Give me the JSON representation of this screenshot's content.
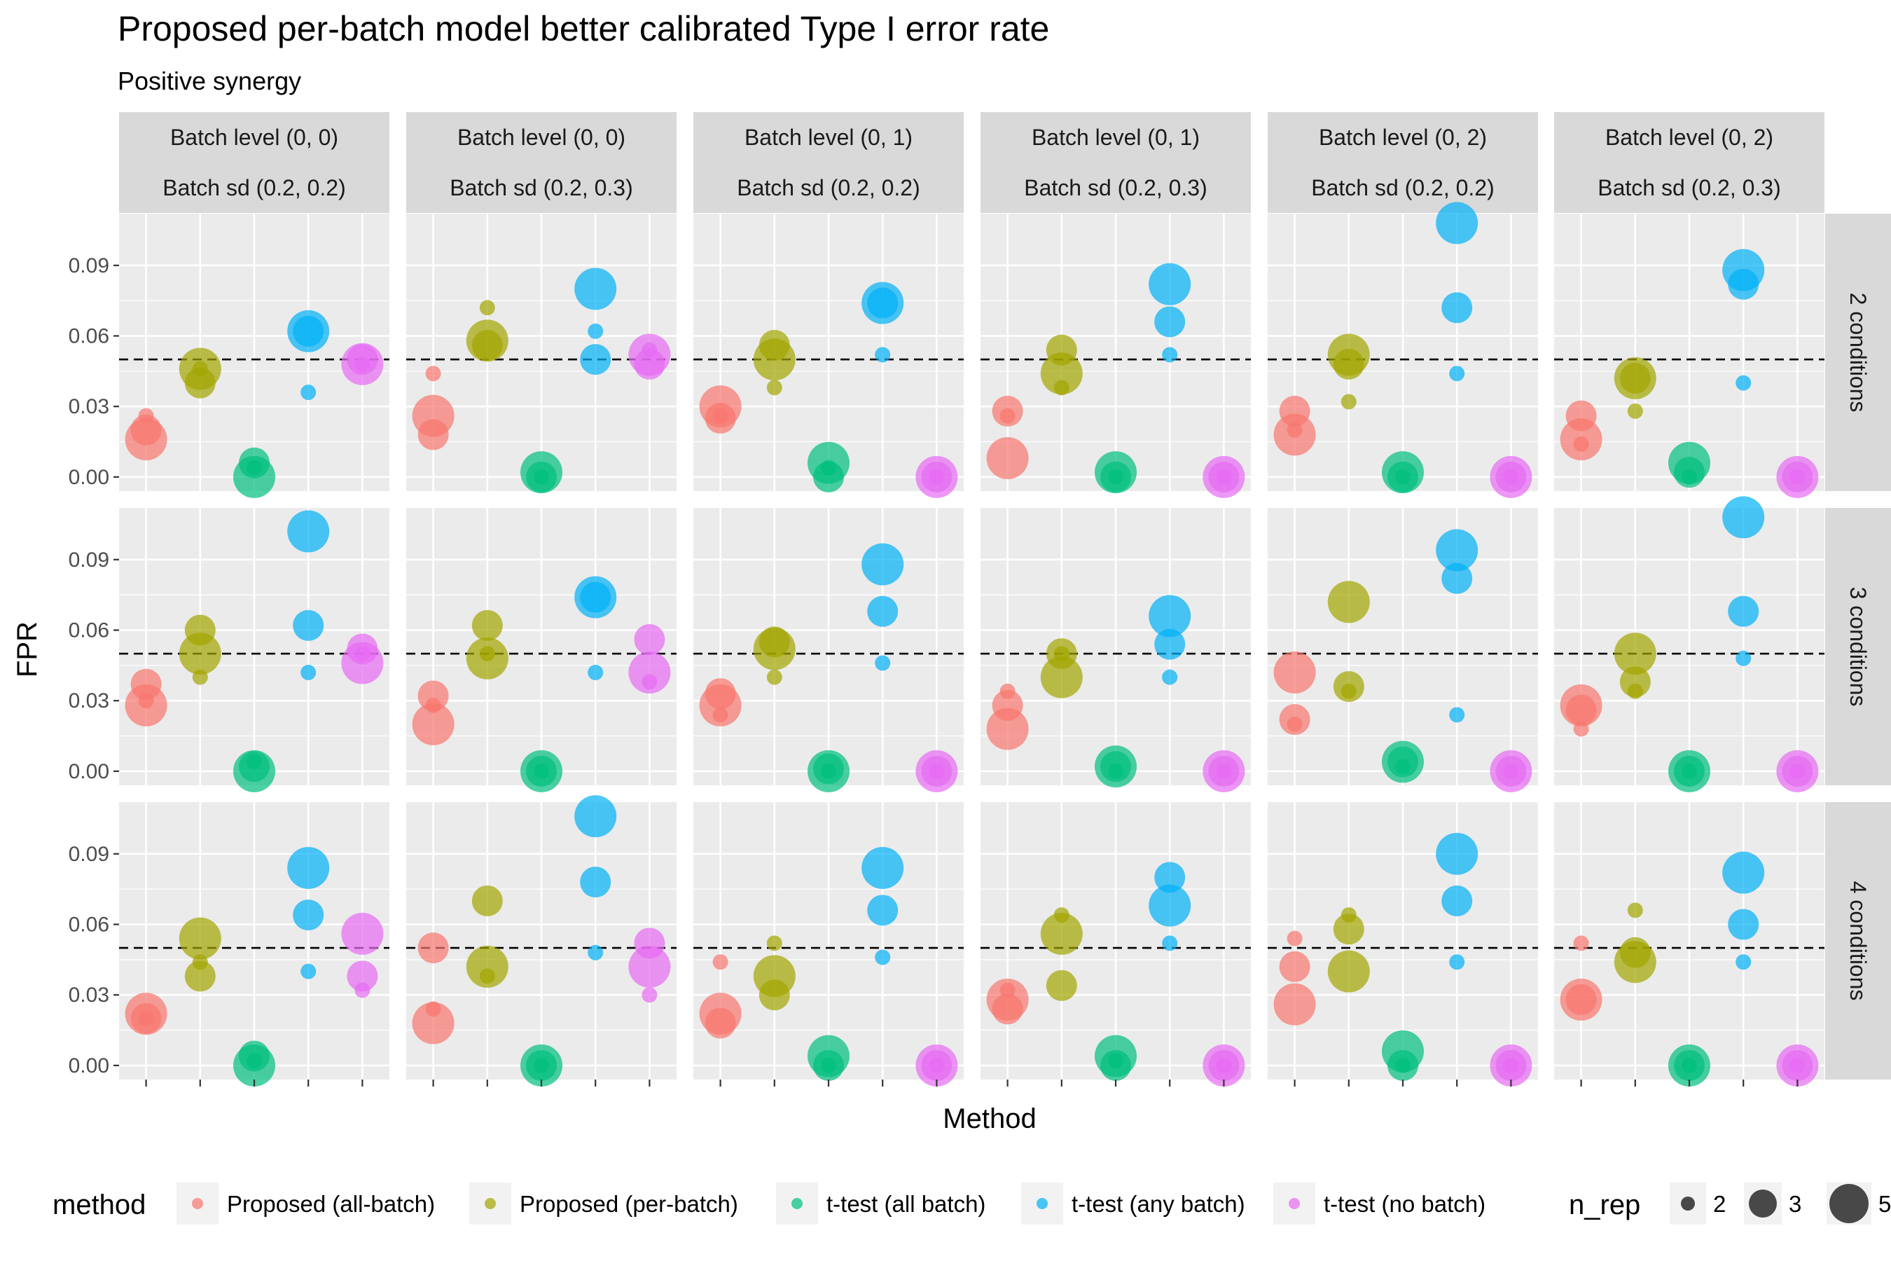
{
  "chart_data": {
    "type": "scatter",
    "title": "Proposed per-batch model better calibrated Type I error rate",
    "subtitle": "Positive synergy",
    "xlabel": "Method",
    "ylabel": "FPR",
    "ylim": [
      -0.006,
      0.112
    ],
    "y_ticks": [
      0.0,
      0.03,
      0.06,
      0.09
    ],
    "y_tick_labels": [
      "0.00",
      "0.03",
      "0.06",
      "0.09"
    ],
    "reference_line": 0.05,
    "grid": true,
    "legend_position": "bottom",
    "methods": [
      "Proposed (all-batch)",
      "Proposed (per-batch)",
      "t-test (all batch)",
      "t-test (any batch)",
      "t-test (no batch)"
    ],
    "method_colors": [
      "#F8766D",
      "#A3A500",
      "#00BF7D",
      "#00B0F6",
      "#E76BF3"
    ],
    "col_strips": [
      [
        "Batch level (0, 0)",
        "Batch sd (0.2, 0.2)"
      ],
      [
        "Batch level (0, 0)",
        "Batch sd (0.2, 0.3)"
      ],
      [
        "Batch level (0, 1)",
        "Batch sd (0.2, 0.2)"
      ],
      [
        "Batch level (0, 1)",
        "Batch sd (0.2, 0.3)"
      ],
      [
        "Batch level (0, 2)",
        "Batch sd (0.2, 0.2)"
      ],
      [
        "Batch level (0, 2)",
        "Batch sd (0.2, 0.3)"
      ]
    ],
    "row_strips": [
      "2 conditions",
      "3 conditions",
      "4 conditions"
    ],
    "size_legend": {
      "title": "n_rep",
      "values": [
        2,
        3,
        5
      ],
      "labels": [
        "2",
        "3",
        "5"
      ]
    },
    "color_legend_title": "method",
    "panels": [
      [
        {
          "points": [
            [
              0.026,
              0.02,
              0.016
            ],
            [
              0.046,
              0.04,
              0.046
            ],
            [
              0.004,
              0.006,
              0.0
            ],
            [
              0.036,
              0.062,
              0.062
            ],
            [
              0.048,
              0.05,
              0.048
            ]
          ]
        },
        {
          "points": [
            [
              0.044,
              0.018,
              0.026
            ],
            [
              0.072,
              0.056,
              0.058
            ],
            [
              0.0,
              0.0,
              0.002
            ],
            [
              0.062,
              0.05,
              0.08
            ],
            [
              0.054,
              0.048,
              0.052
            ]
          ]
        },
        {
          "points": [
            [
              0.026,
              0.025,
              0.03
            ],
            [
              0.038,
              0.056,
              0.05
            ],
            [
              0.004,
              0.0,
              0.006
            ],
            [
              0.052,
              0.074,
              0.074
            ],
            [
              0.0,
              0.0,
              0.0
            ]
          ]
        },
        {
          "points": [
            [
              0.026,
              0.028,
              0.008
            ],
            [
              0.038,
              0.054,
              0.044
            ],
            [
              0.0,
              0.0,
              0.002
            ],
            [
              0.052,
              0.066,
              0.082
            ],
            [
              0.0,
              0.0,
              0.0
            ]
          ]
        },
        {
          "points": [
            [
              0.02,
              0.028,
              0.018
            ],
            [
              0.032,
              0.048,
              0.052
            ],
            [
              0.0,
              0.0,
              0.002
            ],
            [
              0.044,
              0.072,
              0.108
            ],
            [
              0.0,
              0.0,
              0.0
            ]
          ]
        },
        {
          "points": [
            [
              0.014,
              0.026,
              0.016
            ],
            [
              0.028,
              0.042,
              0.042
            ],
            [
              0.0,
              0.002,
              0.006
            ],
            [
              0.04,
              0.082,
              0.088
            ],
            [
              0.0,
              0.0,
              0.0
            ]
          ]
        }
      ],
      [
        {
          "points": [
            [
              0.03,
              0.037,
              0.028
            ],
            [
              0.04,
              0.06,
              0.05
            ],
            [
              0.004,
              0.002,
              0.0
            ],
            [
              0.042,
              0.062,
              0.102
            ],
            [
              0.05,
              0.052,
              0.046
            ]
          ]
        },
        {
          "points": [
            [
              0.028,
              0.032,
              0.02
            ],
            [
              0.05,
              0.062,
              0.048
            ],
            [
              0.0,
              0.0,
              0.0
            ],
            [
              0.042,
              0.074,
              0.074
            ],
            [
              0.038,
              0.056,
              0.042
            ]
          ]
        },
        {
          "points": [
            [
              0.024,
              0.033,
              0.028
            ],
            [
              0.04,
              0.055,
              0.052
            ],
            [
              0.0,
              0.001,
              0.0
            ],
            [
              0.046,
              0.068,
              0.088
            ],
            [
              0.0,
              0.0,
              0.0
            ]
          ]
        },
        {
          "points": [
            [
              0.034,
              0.028,
              0.018
            ],
            [
              0.05,
              0.05,
              0.04
            ],
            [
              0.0,
              0.002,
              0.002
            ],
            [
              0.04,
              0.054,
              0.066
            ],
            [
              0.0,
              0.0,
              0.0
            ]
          ]
        },
        {
          "points": [
            [
              0.02,
              0.022,
              0.042
            ],
            [
              0.034,
              0.036,
              0.072
            ],
            [
              0.002,
              0.004,
              0.004
            ],
            [
              0.024,
              0.082,
              0.094
            ],
            [
              0.0,
              0.0,
              0.0
            ]
          ]
        },
        {
          "points": [
            [
              0.018,
              0.026,
              0.028
            ],
            [
              0.034,
              0.038,
              0.05
            ],
            [
              0.0,
              0.0,
              0.0
            ],
            [
              0.048,
              0.068,
              0.108
            ],
            [
              0.0,
              0.0,
              0.0
            ]
          ]
        }
      ],
      [
        {
          "points": [
            [
              0.02,
              0.02,
              0.022
            ],
            [
              0.044,
              0.038,
              0.054
            ],
            [
              0.002,
              0.004,
              0.0
            ],
            [
              0.04,
              0.064,
              0.084
            ],
            [
              0.032,
              0.038,
              0.056
            ]
          ]
        },
        {
          "points": [
            [
              0.024,
              0.05,
              0.018
            ],
            [
              0.038,
              0.07,
              0.042
            ],
            [
              0.0,
              0.0,
              0.0
            ],
            [
              0.048,
              0.078,
              0.106
            ],
            [
              0.03,
              0.052,
              0.042
            ]
          ]
        },
        {
          "points": [
            [
              0.044,
              0.018,
              0.022
            ],
            [
              0.052,
              0.03,
              0.038
            ],
            [
              0.0,
              0.0,
              0.004
            ],
            [
              0.046,
              0.066,
              0.084
            ],
            [
              0.0,
              0.0,
              0.0
            ]
          ]
        },
        {
          "points": [
            [
              0.032,
              0.024,
              0.028
            ],
            [
              0.064,
              0.034,
              0.056
            ],
            [
              0.002,
              0.0,
              0.004
            ],
            [
              0.052,
              0.08,
              0.068
            ],
            [
              0.0,
              0.0,
              0.0
            ]
          ]
        },
        {
          "points": [
            [
              0.054,
              0.042,
              0.026
            ],
            [
              0.064,
              0.058,
              0.04
            ],
            [
              0.0,
              0.0,
              0.006
            ],
            [
              0.044,
              0.07,
              0.09
            ],
            [
              0.0,
              0.0,
              0.0
            ]
          ]
        },
        {
          "points": [
            [
              0.052,
              0.028,
              0.028
            ],
            [
              0.066,
              0.048,
              0.044
            ],
            [
              0.0,
              0.0,
              0.0
            ],
            [
              0.044,
              0.06,
              0.082
            ],
            [
              0.0,
              0.0,
              0.0
            ]
          ]
        }
      ]
    ],
    "point_rep_sizes": [
      2,
      3,
      5
    ]
  }
}
